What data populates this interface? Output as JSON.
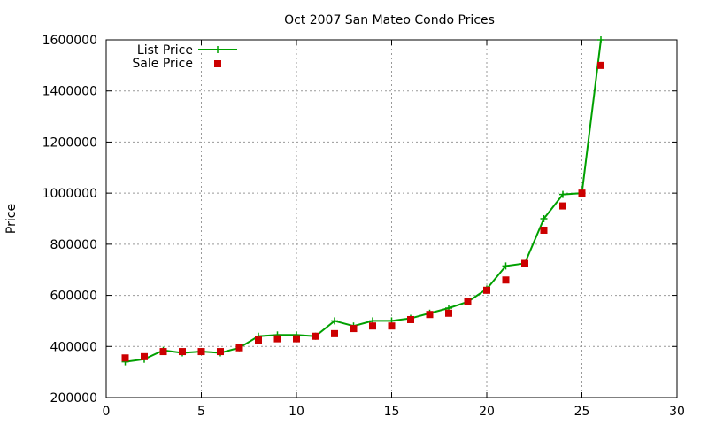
{
  "chart_data": {
    "type": "line",
    "title": "Oct 2007 San Mateo Condo Prices",
    "xlabel": "",
    "ylabel": "Price",
    "xlim": [
      0,
      30
    ],
    "ylim": [
      200000,
      1600000
    ],
    "x_ticks": [
      0,
      5,
      10,
      15,
      20,
      25,
      30
    ],
    "y_ticks": [
      200000,
      400000,
      600000,
      800000,
      1000000,
      1200000,
      1400000,
      1600000
    ],
    "grid": true,
    "legend_position": "top-left",
    "series": [
      {
        "name": "List Price",
        "style": "line-with-plus-markers",
        "color": "#00a000",
        "x": [
          1,
          2,
          3,
          4,
          5,
          6,
          7,
          8,
          9,
          10,
          11,
          12,
          13,
          14,
          15,
          16,
          17,
          18,
          19,
          20,
          21,
          22,
          23,
          24,
          25,
          26
        ],
        "y": [
          340000,
          350000,
          385000,
          375000,
          380000,
          375000,
          395000,
          440000,
          445000,
          445000,
          440000,
          500000,
          480000,
          500000,
          500000,
          510000,
          530000,
          550000,
          575000,
          625000,
          715000,
          725000,
          900000,
          995000,
          1000000,
          1600000
        ]
      },
      {
        "name": "Sale Price",
        "style": "square-markers",
        "color": "#cc0000",
        "x": [
          1,
          2,
          3,
          4,
          5,
          6,
          7,
          8,
          9,
          10,
          11,
          12,
          13,
          14,
          15,
          16,
          17,
          18,
          19,
          20,
          21,
          22,
          23,
          24,
          25,
          26
        ],
        "y": [
          355000,
          360000,
          380000,
          380000,
          380000,
          380000,
          395000,
          425000,
          430000,
          430000,
          440000,
          450000,
          470000,
          480000,
          480000,
          505000,
          525000,
          530000,
          575000,
          620000,
          660000,
          725000,
          855000,
          950000,
          1000000,
          1500000
        ]
      }
    ]
  }
}
